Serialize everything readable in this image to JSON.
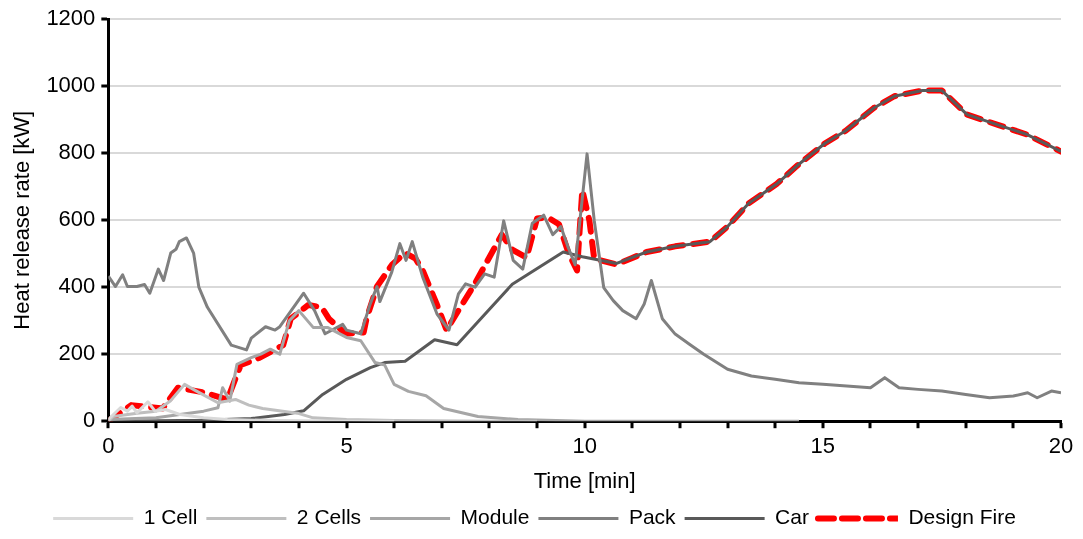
{
  "chart_data": {
    "type": "line",
    "xlabel": "Time [min]",
    "ylabel": "Heat release rate [kW]",
    "xlim": [
      0,
      20
    ],
    "ylim": [
      0,
      1200
    ],
    "xticks": [
      0,
      {
        "value": 1,
        "label": null
      },
      {
        "value": 2,
        "label": null
      },
      {
        "value": 3,
        "label": null
      },
      {
        "value": 4,
        "label": null
      },
      5,
      {
        "value": 6,
        "label": null
      },
      {
        "value": 7,
        "label": null
      },
      {
        "value": 8,
        "label": null
      },
      {
        "value": 9,
        "label": null
      },
      10,
      {
        "value": 11,
        "label": null
      },
      {
        "value": 12,
        "label": null
      },
      {
        "value": 13,
        "label": null
      },
      {
        "value": 14,
        "label": null
      },
      15,
      {
        "value": 16,
        "label": null
      },
      {
        "value": 17,
        "label": null
      },
      {
        "value": 18,
        "label": null
      },
      {
        "value": 19,
        "label": null
      },
      20
    ],
    "yticks": [
      0,
      200,
      400,
      600,
      800,
      1000,
      1200
    ],
    "grid": "y",
    "legend": "bottom",
    "marker": "none",
    "series": [
      {
        "name": "1 Cell",
        "color": "#d9d9d9",
        "x": [
          0,
          0.26,
          0.4,
          0.5,
          0.6,
          0.83,
          0.98,
          1.2,
          1.5,
          2.0,
          2.5,
          3.5,
          5,
          6
        ],
        "values": [
          5,
          41,
          30,
          45,
          25,
          58,
          30,
          35,
          20,
          10,
          5,
          2,
          0,
          0
        ]
      },
      {
        "name": "2 Cells",
        "color": "#bfbfbf",
        "x": [
          0,
          0.1,
          0.6,
          1.0,
          1.3,
          1.6,
          1.86,
          2.3,
          2.67,
          2.95,
          3.24,
          3.97,
          4.3,
          5,
          6,
          8,
          9
        ],
        "values": [
          0,
          14,
          24,
          30,
          60,
          110,
          89,
          55,
          65,
          48,
          38,
          24,
          10,
          5,
          2,
          0,
          0
        ]
      },
      {
        "name": "Module",
        "color": "#a6a6a6",
        "x": [
          0,
          1,
          2,
          2.3,
          2.4,
          2.55,
          2.7,
          3.0,
          3.2,
          3.4,
          3.6,
          3.8,
          4.0,
          4.3,
          4.6,
          5.0,
          5.3,
          5.6,
          5.8,
          6.0,
          6.3,
          6.67,
          7.04,
          7.76,
          8.6,
          10,
          14.5
        ],
        "values": [
          5,
          10,
          30,
          40,
          100,
          60,
          170,
          190,
          200,
          215,
          200,
          300,
          330,
          280,
          280,
          250,
          240,
          175,
          168,
          110,
          89,
          76,
          38,
          14,
          5,
          0,
          0
        ]
      },
      {
        "name": "Pack",
        "color": "#808080",
        "x": [
          0,
          0.15,
          0.3,
          0.4,
          0.6,
          0.76,
          0.87,
          1.05,
          1.16,
          1.31,
          1.42,
          1.49,
          1.64,
          1.79,
          1.9,
          2.08,
          2.58,
          2.9,
          3.0,
          3.3,
          3.5,
          3.6,
          4.1,
          4.33,
          4.55,
          4.92,
          5.0,
          5.3,
          5.5,
          5.64,
          5.7,
          5.95,
          6.12,
          6.25,
          6.38,
          6.6,
          6.9,
          7.15,
          7.35,
          7.5,
          7.7,
          7.9,
          8.1,
          8.3,
          8.5,
          8.7,
          8.9,
          9.14,
          9.33,
          9.5,
          9.65,
          9.8,
          10.05,
          10.2,
          10.4,
          10.6,
          10.8,
          11.08,
          11.25,
          11.4,
          11.63,
          11.9,
          12.2,
          12.5,
          13,
          13.5,
          14,
          14.5,
          15,
          15.5,
          16,
          16.3,
          16.6,
          17,
          17.5,
          18,
          18.5,
          19,
          19.3,
          19.5,
          19.8,
          20
        ],
        "values": [
          433,
          402,
          437,
          402,
          402,
          408,
          382,
          454,
          420,
          502,
          513,
          536,
          547,
          502,
          400,
          340,
          227,
          213,
          248,
          282,
          272,
          282,
          382,
          330,
          261,
          289,
          272,
          261,
          351,
          402,
          357,
          445,
          530,
          480,
          536,
          430,
          320,
          272,
          380,
          410,
          400,
          440,
          430,
          598,
          480,
          454,
          591,
          615,
          557,
          581,
          520,
          467,
          798,
          600,
          399,
          360,
          330,
          306,
          350,
          420,
          306,
          260,
          230,
          200,
          155,
          135,
          125,
          115,
          110,
          105,
          100,
          130,
          100,
          95,
          90,
          80,
          70,
          75,
          85,
          70,
          90,
          85
        ]
      },
      {
        "name": "Car",
        "color": "#595959",
        "x": [
          0,
          2,
          3,
          3.7,
          4.1,
          4.5,
          5,
          5.5,
          5.8,
          6.23,
          6.85,
          7.32,
          8.48,
          9.55,
          9.95,
          10.67,
          11.3,
          11.9,
          12.63,
          13.0,
          13.44,
          14.03,
          14.47,
          15.04,
          15.48,
          16.07,
          16.5,
          17.09,
          17.5,
          18.03,
          18.69,
          19.28,
          20
        ],
        "values": [
          0,
          3,
          8,
          20,
          31,
          80,
          125,
          160,
          175,
          179,
          243,
          228,
          409,
          505,
          491,
          471,
          505,
          522,
          536,
          581,
          650,
          708,
          764,
          829,
          867,
          935,
          970,
          987,
          987,
          915,
          884,
          856,
          805
        ]
      },
      {
        "name": "Design Fire",
        "color": "#ff0000",
        "line_style": "dashed",
        "x": [
          0,
          0.48,
          1.14,
          1.46,
          2.0,
          2.5,
          2.78,
          3.17,
          3.67,
          3.83,
          4.2,
          4.48,
          4.63,
          4.98,
          5.36,
          5.42,
          5.64,
          5.96,
          6.23,
          6.45,
          6.6,
          6.89,
          7.1,
          7.39,
          7.69,
          8.26,
          8.48,
          8.78,
          9.0,
          9.22,
          9.46,
          9.66,
          9.84,
          9.95,
          10.1,
          10.2,
          10.67,
          11.3,
          11.9,
          12.63,
          13.0,
          13.44,
          14.03,
          14.47,
          15.04,
          15.48,
          16.07,
          16.5,
          17.09,
          17.5,
          18.03,
          18.69,
          19.28,
          20
        ],
        "values": [
          0,
          48,
          38,
          100,
          86,
          65,
          168,
          189,
          227,
          306,
          347,
          340,
          306,
          261,
          265,
          306,
          402,
          468,
          502,
          485,
          450,
          351,
          272,
          340,
          409,
          557,
          512,
          488,
          605,
          609,
          588,
          502,
          450,
          690,
          598,
          485,
          468,
          505,
          522,
          536,
          581,
          650,
          708,
          764,
          829,
          867,
          935,
          970,
          987,
          987,
          915,
          884,
          856,
          805
        ]
      }
    ]
  }
}
